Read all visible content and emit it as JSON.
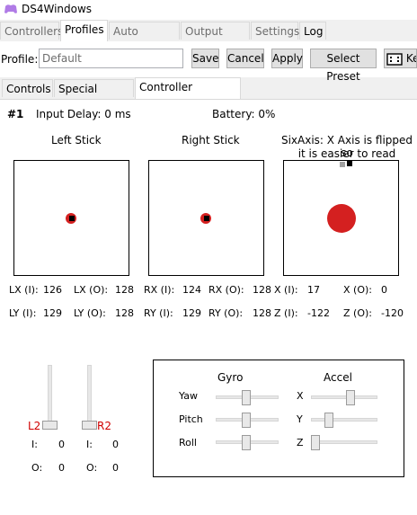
{
  "window": {
    "title": "DS4Windows"
  },
  "main_tabs": [
    "Controllers",
    "Profiles",
    "Auto Profiles",
    "Output Slots",
    "Settings",
    "Log"
  ],
  "profile_bar": {
    "label": "Profile:",
    "placeholder": "Default",
    "save": "Save",
    "cancel": "Cancel",
    "apply": "Apply",
    "select_preset": "Select Preset",
    "extra": "Ke"
  },
  "sub_tabs": [
    "Controls",
    "Special Actions",
    "Controller Readings"
  ],
  "readings": {
    "slot": "#1",
    "input_delay": "Input Delay: 0 ms",
    "battery": "Battery: 0%",
    "left_stick_title": "Left Stick",
    "right_stick_title": "Right Stick",
    "sixaxis_line1": "SixAxis: X Axis is flipped so",
    "sixaxis_line2": "it is easier to read",
    "lx_i_label": "LX (I):",
    "lx_i": "126",
    "lx_o_label": "LX (O):",
    "lx_o": "128",
    "rx_i_label": "RX (I):",
    "rx_i": "124",
    "rx_o_label": "RX (O):",
    "rx_o": "128",
    "x_i_label": "X (I):",
    "x_i": "17",
    "x_o_label": "X (O):",
    "x_o": "0",
    "ly_i_label": "LY (I):",
    "ly_i": "129",
    "ly_o_label": "LY (O):",
    "ly_o": "128",
    "ry_i_label": "RY (I):",
    "ry_i": "129",
    "ry_o_label": "RY (O):",
    "ry_o": "128",
    "z_i_label": "Z (I):",
    "z_i": "-122",
    "z_o_label": "Z (O):",
    "z_o": "-120"
  },
  "triggers": {
    "l2_label": "L2",
    "r2_label": "R2",
    "i_label": "I:",
    "o_label": "O:",
    "l2_i": "0",
    "l2_o": "0",
    "r2_i": "0",
    "r2_o": "0"
  },
  "motion": {
    "gyro_title": "Gyro",
    "accel_title": "Accel",
    "yaw": "Yaw",
    "pitch": "Pitch",
    "roll": "Roll",
    "x": "X",
    "y": "Y",
    "z": "Z"
  },
  "colors": {
    "accent_red": "#d42020",
    "trigger_label_red": "#d00000"
  }
}
